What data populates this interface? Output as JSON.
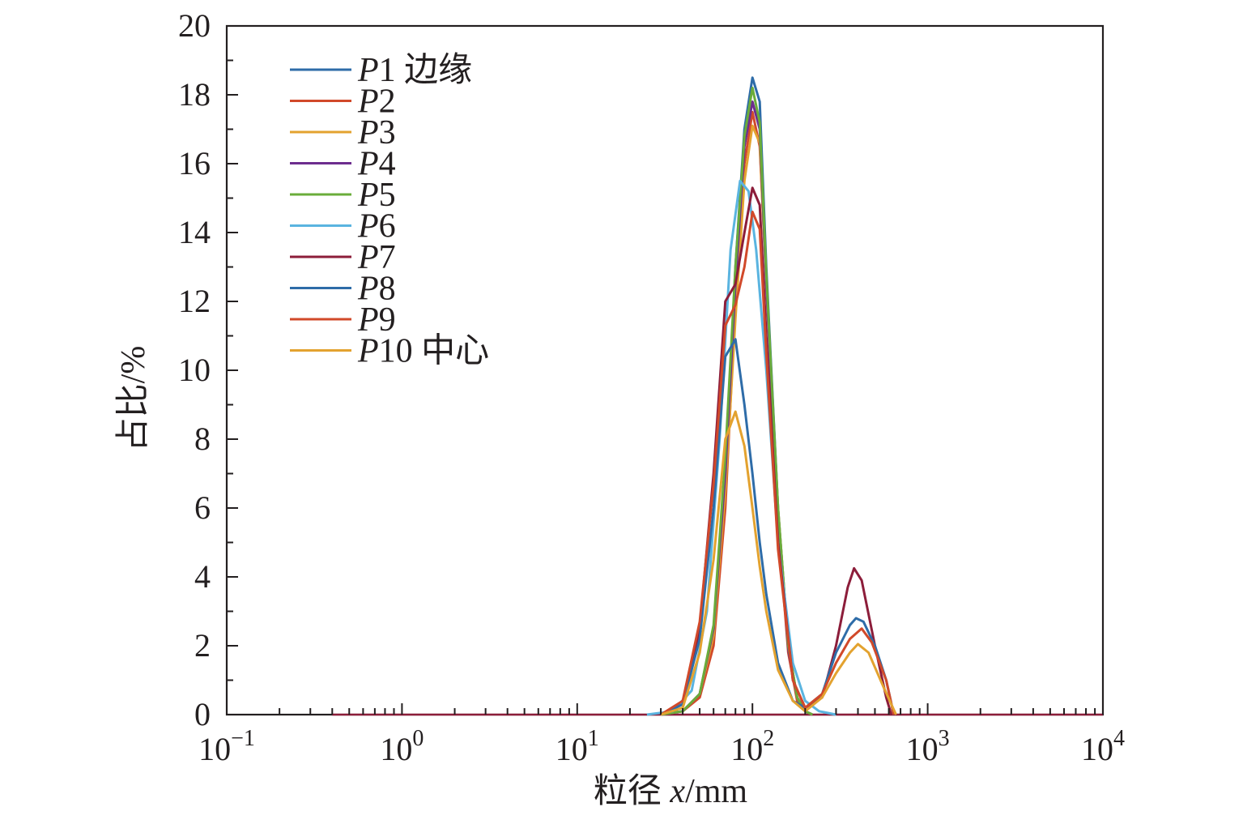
{
  "chart_data": {
    "type": "line",
    "xscale": "log",
    "xlim": [
      0.1,
      10000
    ],
    "ylim": [
      0,
      20
    ],
    "grid": false,
    "legend_position": "top-left",
    "xlabel": {
      "prefix": "粒径 ",
      "var": "x",
      "suffix": "/mm"
    },
    "ylabel": "占比/%",
    "x_ticks": [
      {
        "value": 0.1,
        "base": "10",
        "exp": "−1"
      },
      {
        "value": 1,
        "base": "10",
        "exp": "0"
      },
      {
        "value": 10,
        "base": "10",
        "exp": "1"
      },
      {
        "value": 100,
        "base": "10",
        "exp": "2"
      },
      {
        "value": 1000,
        "base": "10",
        "exp": "3"
      },
      {
        "value": 10000,
        "base": "10",
        "exp": "4"
      }
    ],
    "y_ticks": [
      0,
      2,
      4,
      6,
      8,
      10,
      12,
      14,
      16,
      18,
      20
    ],
    "baseline_x_range": [
      0.4,
      10000
    ],
    "series": [
      {
        "name": "P1",
        "label_var": "P",
        "label_num": "1",
        "label_suffix": " 边缘",
        "color": "#2e6ca8",
        "points": [
          [
            30,
            0
          ],
          [
            40,
            0.1
          ],
          [
            50,
            0.6
          ],
          [
            60,
            2.5
          ],
          [
            70,
            7
          ],
          [
            80,
            13
          ],
          [
            90,
            17
          ],
          [
            100,
            18.5
          ],
          [
            110,
            17.8
          ],
          [
            120,
            13
          ],
          [
            140,
            6
          ],
          [
            160,
            2
          ],
          [
            180,
            0.5
          ],
          [
            200,
            0.1
          ],
          [
            220,
            0
          ]
        ]
      },
      {
        "name": "P2",
        "label_var": "P",
        "label_num": "2",
        "label_suffix": "",
        "color": "#d1492a",
        "points": [
          [
            30,
            0
          ],
          [
            40,
            0.1
          ],
          [
            50,
            0.5
          ],
          [
            60,
            2
          ],
          [
            70,
            6
          ],
          [
            80,
            12
          ],
          [
            90,
            16
          ],
          [
            100,
            17.5
          ],
          [
            110,
            16.5
          ],
          [
            120,
            12.5
          ],
          [
            140,
            5.5
          ],
          [
            160,
            1.8
          ],
          [
            180,
            0.4
          ],
          [
            200,
            0.1
          ],
          [
            220,
            0
          ]
        ]
      },
      {
        "name": "P3",
        "label_var": "P",
        "label_num": "3",
        "label_suffix": "",
        "color": "#e3a22f",
        "points": [
          [
            30,
            0
          ],
          [
            40,
            0.1
          ],
          [
            50,
            0.6
          ],
          [
            60,
            2.3
          ],
          [
            70,
            6.5
          ],
          [
            80,
            11.5
          ],
          [
            90,
            15.5
          ],
          [
            100,
            17.1
          ],
          [
            110,
            16.6
          ],
          [
            120,
            12.5
          ],
          [
            140,
            6
          ],
          [
            160,
            2
          ],
          [
            180,
            0.5
          ],
          [
            200,
            0.1
          ],
          [
            220,
            0
          ]
        ]
      },
      {
        "name": "P4",
        "label_var": "P",
        "label_num": "4",
        "label_suffix": "",
        "color": "#6d2d8e",
        "points": [
          [
            30,
            0
          ],
          [
            40,
            0.1
          ],
          [
            50,
            0.6
          ],
          [
            60,
            2.5
          ],
          [
            70,
            7
          ],
          [
            80,
            12.5
          ],
          [
            90,
            16.5
          ],
          [
            100,
            17.8
          ],
          [
            110,
            17
          ],
          [
            120,
            12.5
          ],
          [
            140,
            5.8
          ],
          [
            160,
            1.9
          ],
          [
            180,
            0.5
          ],
          [
            200,
            0.1
          ],
          [
            220,
            0
          ]
        ]
      },
      {
        "name": "P5",
        "label_var": "P",
        "label_num": "5",
        "label_suffix": "",
        "color": "#6aac3a",
        "points": [
          [
            30,
            0
          ],
          [
            40,
            0.1
          ],
          [
            50,
            0.6
          ],
          [
            60,
            2.6
          ],
          [
            70,
            7.5
          ],
          [
            80,
            13
          ],
          [
            90,
            16.8
          ],
          [
            100,
            18.2
          ],
          [
            110,
            17.2
          ],
          [
            120,
            12.8
          ],
          [
            140,
            6
          ],
          [
            160,
            2
          ],
          [
            180,
            0.5
          ],
          [
            200,
            0.1
          ],
          [
            220,
            0
          ]
        ]
      },
      {
        "name": "P6",
        "label_var": "P",
        "label_num": "6",
        "label_suffix": "",
        "color": "#5ab4e0",
        "points": [
          [
            25,
            0
          ],
          [
            35,
            0.1
          ],
          [
            45,
            0.7
          ],
          [
            55,
            3
          ],
          [
            65,
            8
          ],
          [
            75,
            13.5
          ],
          [
            85,
            15.5
          ],
          [
            95,
            15.2
          ],
          [
            105,
            13.5
          ],
          [
            120,
            10
          ],
          [
            140,
            5
          ],
          [
            170,
            1.5
          ],
          [
            200,
            0.4
          ],
          [
            240,
            0.1
          ],
          [
            300,
            0
          ]
        ]
      },
      {
        "name": "P7",
        "label_var": "P",
        "label_num": "7",
        "label_suffix": "",
        "color": "#8c1d3a",
        "points": [
          [
            30,
            0
          ],
          [
            40,
            0.3
          ],
          [
            50,
            2.5
          ],
          [
            60,
            7
          ],
          [
            70,
            12
          ],
          [
            80,
            12.5
          ],
          [
            90,
            14
          ],
          [
            100,
            15.3
          ],
          [
            110,
            14.8
          ],
          [
            120,
            11
          ],
          [
            140,
            5
          ],
          [
            170,
            1
          ],
          [
            200,
            0.2
          ],
          [
            250,
            0.5
          ],
          [
            300,
            2
          ],
          [
            350,
            3.7
          ],
          [
            380,
            4.25
          ],
          [
            420,
            3.9
          ],
          [
            500,
            2
          ],
          [
            580,
            0.5
          ],
          [
            620,
            0
          ]
        ]
      },
      {
        "name": "P8",
        "label_var": "P",
        "label_num": "8",
        "label_suffix": "",
        "color": "#2e6ca8",
        "points": [
          [
            30,
            0
          ],
          [
            40,
            0.3
          ],
          [
            50,
            2.2
          ],
          [
            60,
            6
          ],
          [
            70,
            10.4
          ],
          [
            80,
            10.9
          ],
          [
            90,
            9
          ],
          [
            100,
            7
          ],
          [
            110,
            5
          ],
          [
            120,
            3.5
          ],
          [
            140,
            1.5
          ],
          [
            170,
            0.4
          ],
          [
            200,
            0.2
          ],
          [
            250,
            0.6
          ],
          [
            300,
            1.8
          ],
          [
            360,
            2.6
          ],
          [
            390,
            2.8
          ],
          [
            430,
            2.7
          ],
          [
            500,
            2
          ],
          [
            580,
            1
          ],
          [
            640,
            0
          ]
        ]
      },
      {
        "name": "P9",
        "label_var": "P",
        "label_num": "9",
        "label_suffix": "",
        "color": "#d1492a",
        "points": [
          [
            30,
            0
          ],
          [
            40,
            0.4
          ],
          [
            50,
            2.7
          ],
          [
            60,
            6.7
          ],
          [
            70,
            11.3
          ],
          [
            80,
            11.9
          ],
          [
            90,
            13
          ],
          [
            100,
            14.6
          ],
          [
            110,
            14.1
          ],
          [
            120,
            10.5
          ],
          [
            140,
            4.8
          ],
          [
            170,
            1
          ],
          [
            200,
            0.2
          ],
          [
            250,
            0.6
          ],
          [
            300,
            1.5
          ],
          [
            360,
            2.2
          ],
          [
            420,
            2.5
          ],
          [
            480,
            2.1
          ],
          [
            580,
            1
          ],
          [
            640,
            0
          ]
        ]
      },
      {
        "name": "P10",
        "label_var": "P",
        "label_num": "10",
        "label_suffix": " 中心",
        "color": "#e3a22f",
        "points": [
          [
            30,
            0
          ],
          [
            40,
            0.2
          ],
          [
            50,
            1.8
          ],
          [
            60,
            4.5
          ],
          [
            70,
            8
          ],
          [
            80,
            8.8
          ],
          [
            90,
            7.8
          ],
          [
            100,
            6
          ],
          [
            110,
            4.3
          ],
          [
            120,
            3
          ],
          [
            140,
            1.3
          ],
          [
            170,
            0.4
          ],
          [
            200,
            0.1
          ],
          [
            250,
            0.5
          ],
          [
            300,
            1.2
          ],
          [
            360,
            1.8
          ],
          [
            400,
            2.05
          ],
          [
            460,
            1.8
          ],
          [
            560,
            0.8
          ],
          [
            660,
            0
          ]
        ]
      }
    ]
  }
}
